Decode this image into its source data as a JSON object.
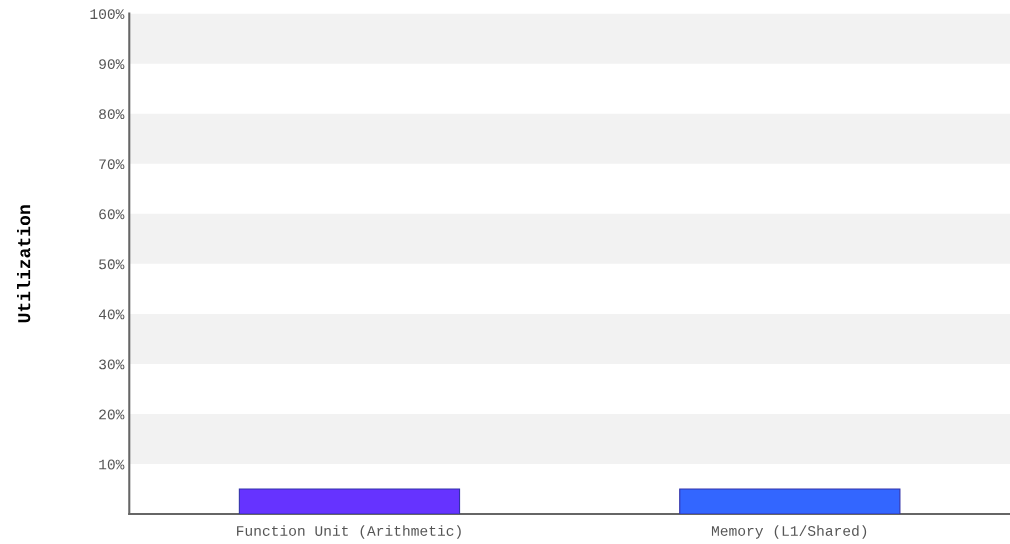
{
  "chart_data": {
    "type": "bar",
    "ylabel": "Utilization",
    "categories": [
      "Function Unit (Arithmetic)",
      "Memory (L1/Shared)"
    ],
    "values": [
      5,
      5
    ],
    "colors": [
      "#6633ff",
      "#3366ff"
    ],
    "ylim": [
      0,
      100
    ],
    "yticks": [
      {
        "value": 10,
        "label": "10%"
      },
      {
        "value": 20,
        "label": "20%"
      },
      {
        "value": 30,
        "label": "30%"
      },
      {
        "value": 40,
        "label": "40%"
      },
      {
        "value": 50,
        "label": "50%"
      },
      {
        "value": 60,
        "label": "60%"
      },
      {
        "value": 70,
        "label": "70%"
      },
      {
        "value": 80,
        "label": "80%"
      },
      {
        "value": 90,
        "label": "90%"
      },
      {
        "value": 100,
        "label": "100%"
      }
    ],
    "bands": [
      {
        "axis": "y",
        "from": 10,
        "to": 20,
        "color": "#f2f2f2"
      },
      {
        "axis": "y",
        "from": 30,
        "to": 40,
        "color": "#f2f2f2"
      },
      {
        "axis": "y",
        "from": 50,
        "to": 60,
        "color": "#f2f2f2"
      },
      {
        "axis": "y",
        "from": 70,
        "to": 80,
        "color": "#f2f2f2"
      },
      {
        "axis": "y",
        "from": 90,
        "to": 100,
        "color": "#f2f2f2"
      }
    ],
    "grid": false,
    "legend": false
  }
}
